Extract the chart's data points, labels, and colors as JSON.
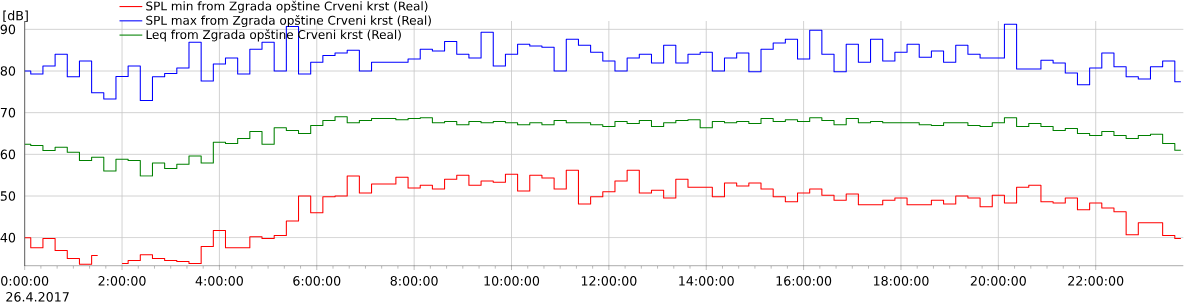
{
  "chart_data": {
    "type": "step",
    "x": [
      0,
      0.25,
      0.5,
      0.75,
      1,
      1.25,
      1.5,
      1.75,
      2,
      2.25,
      2.5,
      2.75,
      3,
      3.25,
      3.5,
      3.75,
      4,
      4.25,
      4.5,
      4.75,
      5,
      5.25,
      5.5,
      5.75,
      6,
      6.25,
      6.5,
      6.75,
      7,
      7.25,
      7.5,
      7.75,
      8,
      8.25,
      8.5,
      8.75,
      9,
      9.25,
      9.5,
      9.75,
      10,
      10.25,
      10.5,
      10.75,
      11,
      11.25,
      11.5,
      11.75,
      12,
      12.25,
      12.5,
      12.75,
      13,
      13.25,
      13.5,
      13.75,
      14,
      14.25,
      14.5,
      14.75,
      15,
      15.25,
      15.5,
      15.75,
      16,
      16.25,
      16.5,
      16.75,
      17,
      17.25,
      17.5,
      17.75,
      18,
      18.25,
      18.5,
      18.75,
      19,
      19.25,
      19.5,
      19.75,
      20,
      20.25,
      20.5,
      20.75,
      21,
      21.25,
      21.5,
      21.75,
      22,
      22.25,
      22.5,
      22.75,
      23,
      23.25,
      23.5,
      23.75
    ],
    "series": [
      {
        "name": "SPL min from Zgrada opštine Crveni krst (Real)",
        "color": "#ff0000",
        "values": [
          40.0,
          37.6,
          39.8,
          36.9,
          35.0,
          33.6,
          35.7,
          null,
          33.8,
          34.5,
          35.9,
          35.0,
          34.5,
          34.3,
          33.8,
          37.9,
          41.7,
          37.6,
          37.6,
          40.2,
          39.8,
          40.5,
          44.0,
          50.0,
          46.0,
          49.8,
          50.0,
          54.8,
          50.7,
          52.9,
          52.9,
          54.5,
          51.9,
          52.6,
          51.7,
          54.0,
          55.0,
          52.6,
          53.6,
          53.3,
          55.2,
          51.2,
          55.0,
          54.3,
          51.7,
          56.2,
          48.1,
          49.8,
          51.0,
          53.6,
          56.2,
          50.7,
          51.4,
          49.5,
          54.0,
          52.1,
          52.1,
          49.8,
          53.1,
          52.4,
          53.1,
          51.7,
          49.8,
          48.6,
          50.7,
          51.7,
          50.2,
          49.0,
          50.5,
          47.9,
          47.9,
          49.0,
          49.5,
          47.9,
          47.9,
          49.0,
          48.1,
          50.0,
          49.5,
          47.4,
          50.2,
          48.3,
          52.1,
          52.6,
          48.6,
          48.3,
          49.5,
          46.7,
          48.3,
          47.1,
          46.2,
          40.7,
          43.6,
          43.6,
          40.5,
          39.8
        ]
      },
      {
        "name": "SPL max from Zgrada opštine Crveni krst (Real)",
        "color": "#0000ff",
        "values": [
          80.0,
          79.3,
          81.2,
          84.0,
          78.6,
          82.4,
          74.8,
          73.3,
          78.7,
          81.2,
          72.9,
          78.6,
          79.4,
          80.7,
          86.9,
          77.6,
          81.7,
          83.1,
          79.3,
          85.2,
          86.9,
          80.0,
          90.7,
          79.3,
          82.1,
          83.7,
          84.3,
          85.0,
          80.0,
          82.1,
          82.1,
          82.1,
          82.9,
          85.2,
          84.8,
          87.1,
          84.0,
          83.1,
          89.3,
          81.2,
          84.0,
          86.4,
          86.0,
          85.7,
          80.0,
          87.6,
          86.2,
          84.5,
          82.4,
          80.0,
          83.1,
          84.0,
          81.9,
          86.2,
          81.9,
          84.0,
          84.5,
          80.0,
          83.1,
          84.3,
          79.8,
          85.2,
          86.7,
          87.6,
          82.9,
          89.8,
          84.0,
          79.8,
          86.4,
          82.1,
          87.6,
          82.4,
          84.5,
          86.4,
          83.3,
          84.8,
          82.1,
          86.2,
          84.0,
          83.1,
          83.1,
          91.2,
          80.5,
          80.5,
          82.6,
          81.9,
          79.5,
          76.7,
          80.7,
          84.3,
          81.0,
          78.6,
          78.1,
          81.0,
          82.4,
          77.4
        ]
      },
      {
        "name": "Leq from Zgrada opštine Crveni krst (Real)",
        "color": "#008000",
        "values": [
          62.4,
          62.1,
          60.9,
          61.7,
          60.5,
          58.5,
          59.3,
          56.0,
          58.8,
          58.5,
          54.8,
          57.9,
          56.6,
          57.6,
          59.6,
          57.9,
          62.9,
          62.6,
          63.8,
          65.5,
          62.4,
          66.4,
          65.7,
          65.0,
          66.9,
          68.1,
          69.0,
          67.6,
          68.1,
          68.6,
          68.6,
          68.3,
          68.6,
          68.8,
          67.6,
          67.9,
          67.1,
          67.9,
          67.6,
          67.9,
          67.6,
          67.1,
          67.6,
          67.1,
          68.1,
          67.6,
          67.6,
          67.1,
          66.7,
          67.9,
          67.4,
          68.1,
          66.7,
          67.6,
          68.1,
          68.3,
          66.4,
          67.9,
          67.6,
          67.9,
          67.4,
          68.6,
          67.9,
          68.3,
          67.9,
          68.8,
          68.1,
          67.1,
          68.6,
          67.6,
          67.9,
          67.6,
          67.6,
          67.6,
          67.1,
          66.9,
          67.6,
          67.6,
          66.9,
          66.7,
          67.6,
          68.8,
          66.7,
          67.4,
          66.7,
          65.7,
          66.2,
          65.0,
          64.5,
          65.5,
          64.5,
          63.8,
          64.5,
          64.8,
          62.6,
          61.0
        ]
      }
    ],
    "ylabel": "[dB]",
    "xlim": [
      0,
      23.8
    ],
    "ylim": [
      33.2,
      92
    ],
    "xticks": [
      {
        "value": 0,
        "label": "0:00:00"
      },
      {
        "value": 2,
        "label": "2:00:00"
      },
      {
        "value": 4,
        "label": "4:00:00"
      },
      {
        "value": 6,
        "label": "6:00:00"
      },
      {
        "value": 8,
        "label": "8:00:00"
      },
      {
        "value": 10,
        "label": "10:00:00"
      },
      {
        "value": 12,
        "label": "12:00:00"
      },
      {
        "value": 14,
        "label": "14:00:00"
      },
      {
        "value": 16,
        "label": "16:00:00"
      },
      {
        "value": 18,
        "label": "18:00:00"
      },
      {
        "value": 20,
        "label": "20:00:00"
      },
      {
        "value": 22,
        "label": "22:00:00"
      }
    ],
    "yticks": [
      40,
      50,
      60,
      70,
      80,
      90
    ],
    "annotations": [
      "26.4.2017"
    ],
    "grid": true,
    "legend": "top left"
  }
}
